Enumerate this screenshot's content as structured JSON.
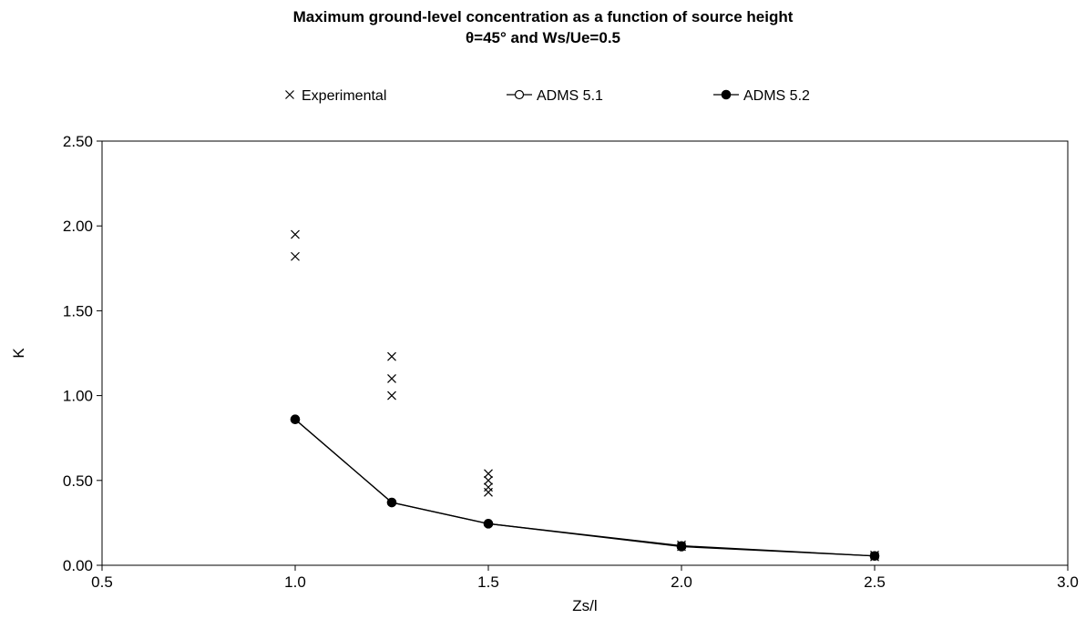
{
  "chart_data": {
    "type": "scatter",
    "title": "Maximum ground-level concentration as a function of source height",
    "subtitle": "θ=45° and Ws/Ue=0.5",
    "xlabel": "Zs/l",
    "ylabel": "K",
    "xlim": [
      0.5,
      3.0
    ],
    "ylim": [
      0.0,
      2.5
    ],
    "x_ticks": [
      "0.5",
      "1.0",
      "1.5",
      "2.0",
      "2.5",
      "3.0"
    ],
    "y_ticks": [
      "0.00",
      "0.50",
      "1.00",
      "1.50",
      "2.00",
      "2.50"
    ],
    "grid": false,
    "legend_position": "top",
    "series": [
      {
        "name": "Experimental",
        "marker": "x",
        "line": false,
        "points": [
          [
            1.0,
            1.95
          ],
          [
            1.0,
            1.82
          ],
          [
            1.25,
            1.23
          ],
          [
            1.25,
            1.1
          ],
          [
            1.25,
            1.0
          ],
          [
            1.5,
            0.54
          ],
          [
            1.5,
            0.5
          ],
          [
            1.5,
            0.46
          ],
          [
            1.5,
            0.43
          ],
          [
            2.0,
            0.12
          ],
          [
            2.0,
            0.11
          ],
          [
            2.5,
            0.06
          ],
          [
            2.5,
            0.05
          ]
        ]
      },
      {
        "name": "ADMS 5.1",
        "marker": "open-circle",
        "line": true,
        "points": [
          [
            1.0,
            0.86
          ],
          [
            1.25,
            0.37
          ],
          [
            1.5,
            0.245
          ],
          [
            2.0,
            0.115
          ],
          [
            2.5,
            0.055
          ]
        ]
      },
      {
        "name": "ADMS 5.2",
        "marker": "filled-circle",
        "line": true,
        "points": [
          [
            1.0,
            0.86
          ],
          [
            1.25,
            0.37
          ],
          [
            1.5,
            0.245
          ],
          [
            2.0,
            0.11
          ],
          [
            2.5,
            0.055
          ]
        ]
      }
    ],
    "colors": {
      "marks": "#000000",
      "background": "#ffffff"
    }
  }
}
